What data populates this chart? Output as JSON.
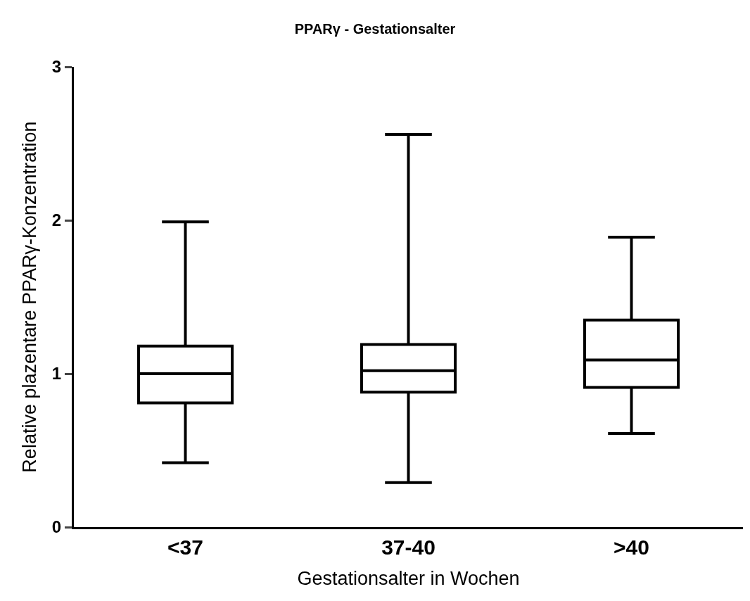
{
  "chart_data": {
    "type": "box",
    "title": "PPARγ - Gestationsalter",
    "xlabel": "Gestationsalter in Wochen",
    "ylabel": "Relative plazentare PPARγ-Konzentration",
    "categories": [
      "<37",
      "37-40",
      ">40"
    ],
    "series": [
      {
        "color": "#000000",
        "boxes": [
          {
            "low": 0.42,
            "q1": 0.81,
            "median": 1.0,
            "q3": 1.18,
            "high": 1.99
          },
          {
            "low": 0.29,
            "q1": 0.88,
            "median": 1.02,
            "q3": 1.19,
            "high": 2.56
          },
          {
            "low": 0.61,
            "q1": 0.91,
            "median": 1.09,
            "q3": 1.35,
            "high": 1.89
          }
        ]
      }
    ],
    "ylim": [
      0,
      3
    ],
    "yticks": [
      0,
      1,
      2,
      3
    ]
  }
}
